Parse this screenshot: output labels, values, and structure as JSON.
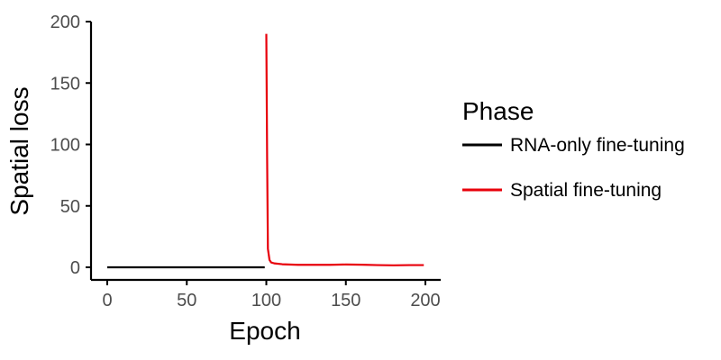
{
  "chart_data": {
    "type": "line",
    "title": "",
    "xlabel": "Epoch",
    "ylabel": "Spatial loss",
    "xlim": [
      -10,
      210
    ],
    "ylim": [
      -10,
      200
    ],
    "xticks": [
      0,
      50,
      100,
      150,
      200
    ],
    "yticks": [
      0,
      50,
      100,
      150,
      200
    ],
    "xtick_labels": [
      "0",
      "50",
      "100",
      "150",
      "200"
    ],
    "ytick_labels": [
      "0",
      "50",
      "100",
      "150",
      "200"
    ],
    "grid": false,
    "legend": {
      "title": "Phase",
      "position": "right"
    },
    "series": [
      {
        "name": "RNA-only fine-tuning",
        "color": "#000000",
        "x": [
          0,
          99
        ],
        "y": [
          0,
          0
        ]
      },
      {
        "name": "Spatial fine-tuning",
        "color": "#e8000b",
        "x": [
          100,
          100.5,
          101,
          102,
          103,
          105,
          110,
          120,
          130,
          140,
          150,
          160,
          170,
          180,
          190,
          199
        ],
        "y": [
          190,
          90,
          15,
          6,
          4,
          3.2,
          2.5,
          2,
          2,
          2,
          2.3,
          2.1,
          1.8,
          1.6,
          1.8,
          1.8
        ]
      }
    ]
  }
}
